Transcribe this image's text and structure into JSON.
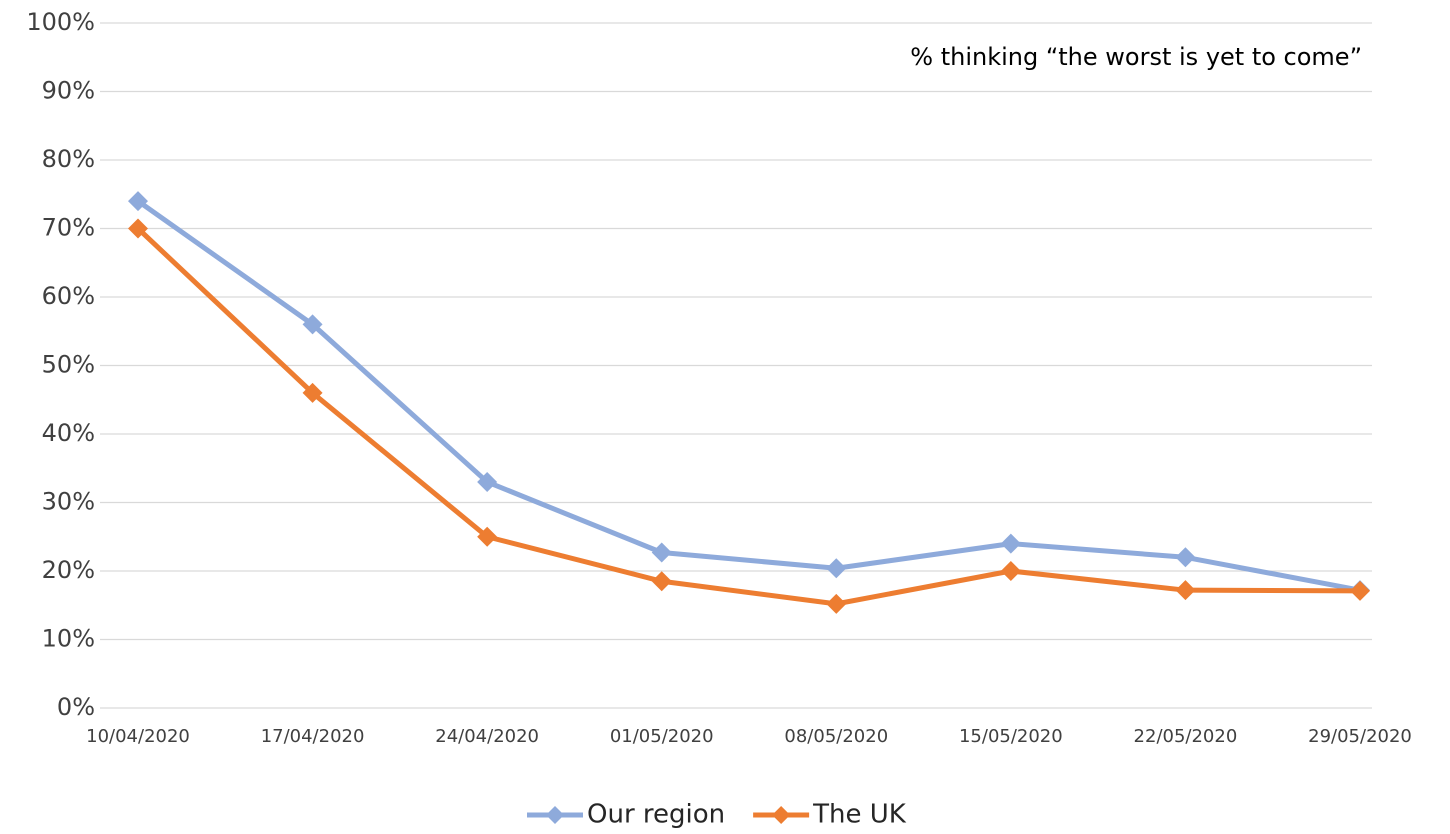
{
  "chart_data": {
    "type": "line",
    "annotation": "% thinking “the worst is yet to come”",
    "categories": [
      "10/04/2020",
      "17/04/2020",
      "24/04/2020",
      "01/05/2020",
      "08/05/2020",
      "15/05/2020",
      "22/05/2020",
      "29/05/2020"
    ],
    "series": [
      {
        "name": "Our region",
        "color": "#8eaadb",
        "values": [
          74,
          56,
          33,
          22.7,
          20.4,
          24,
          22,
          17.2
        ]
      },
      {
        "name": "The UK",
        "color": "#ed7d31",
        "values": [
          70,
          46,
          25,
          18.5,
          15.2,
          20,
          17.2,
          17.1
        ]
      }
    ],
    "ylim": [
      0,
      100
    ],
    "yticks": [
      {
        "value": 0,
        "label": "0%"
      },
      {
        "value": 10,
        "label": "10%"
      },
      {
        "value": 20,
        "label": "20%"
      },
      {
        "value": 30,
        "label": "30%"
      },
      {
        "value": 40,
        "label": "40%"
      },
      {
        "value": 50,
        "label": "50%"
      },
      {
        "value": 60,
        "label": "60%"
      },
      {
        "value": 70,
        "label": "70%"
      },
      {
        "value": 80,
        "label": "80%"
      },
      {
        "value": 90,
        "label": "90%"
      },
      {
        "value": 100,
        "label": "100%"
      }
    ],
    "grid": true,
    "legend": "bottom"
  }
}
